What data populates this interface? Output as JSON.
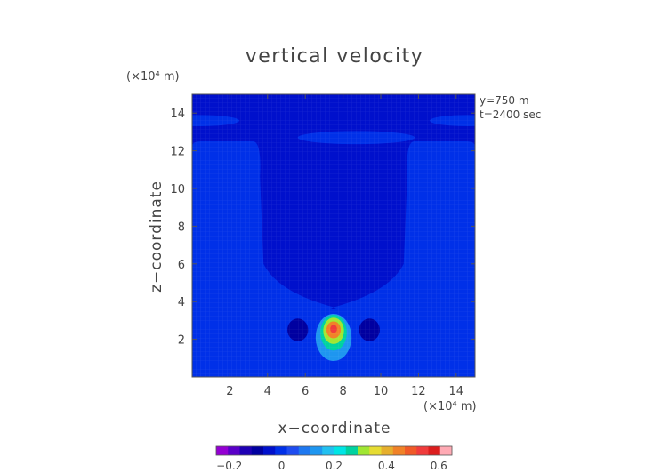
{
  "chart_data": {
    "type": "heatmap",
    "title": "vertical velocity",
    "xlabel": "x−coordinate",
    "ylabel": "z−coordinate",
    "x_unit": "(×10⁴ m)",
    "y_unit": "(×10⁴ m)",
    "annotations": [
      "y=750  m",
      "t=2400 sec"
    ],
    "xlim": [
      0,
      15
    ],
    "ylim": [
      0,
      15
    ],
    "x_ticks": [
      2,
      4,
      6,
      8,
      10,
      12,
      14
    ],
    "y_ticks": [
      2,
      4,
      6,
      8,
      10,
      12,
      14
    ],
    "x_tick_labels": [
      "2",
      "4",
      "6",
      "8",
      "10",
      "12",
      "14"
    ],
    "y_tick_labels": [
      "2",
      "4",
      "6",
      "8",
      "10",
      "12",
      "14"
    ],
    "grid": true,
    "background_value": -0.05,
    "regions": [
      {
        "shape": "updraft_column",
        "x_center": 7.5,
        "x_half_bottom": 1.6,
        "x_half_top": 1.1,
        "z_top": 3.4,
        "value": 0.0
      },
      {
        "shape": "dome",
        "x_center": 7.5,
        "x_half": 7.5,
        "z_top": 3.6,
        "value": 0.0
      },
      {
        "shape": "side_plume_left",
        "x_range": [
          0,
          3.5
        ],
        "z_range": [
          0,
          12.5
        ],
        "value": 0.0
      },
      {
        "shape": "side_plume_right",
        "x_range": [
          11.5,
          15
        ],
        "z_range": [
          0,
          12.5
        ],
        "value": 0.0
      },
      {
        "shape": "ellipse",
        "x_center": 8.7,
        "z_center": 12.7,
        "rx": 3.1,
        "rz": 0.35,
        "value": 0.0
      },
      {
        "shape": "ellipse",
        "x_center": 0.3,
        "z_center": 13.6,
        "rx": 2.2,
        "rz": 0.3,
        "value": 0.0
      },
      {
        "shape": "ellipse",
        "x_center": 14.6,
        "z_center": 13.6,
        "rx": 2.0,
        "rz": 0.3,
        "value": 0.0
      },
      {
        "shape": "ellipse",
        "x_center": 5.6,
        "z_center": 2.5,
        "rx": 0.55,
        "rz": 0.6,
        "value": -0.1
      },
      {
        "shape": "ellipse",
        "x_center": 9.4,
        "z_center": 2.5,
        "rx": 0.55,
        "rz": 0.6,
        "value": -0.1
      },
      {
        "shape": "ellipse",
        "x_center": 7.5,
        "z_center": 2.1,
        "rx": 0.95,
        "rz": 1.25,
        "value": 0.15
      },
      {
        "shape": "ellipse",
        "x_center": 7.5,
        "z_center": 2.35,
        "rx": 0.7,
        "rz": 0.95,
        "value": 0.25
      },
      {
        "shape": "ellipse",
        "x_center": 7.5,
        "z_center": 2.45,
        "rx": 0.55,
        "rz": 0.7,
        "value": 0.32
      },
      {
        "shape": "ellipse",
        "x_center": 7.5,
        "z_center": 2.5,
        "rx": 0.38,
        "rz": 0.45,
        "value": 0.45
      },
      {
        "shape": "ellipse",
        "x_center": 7.5,
        "z_center": 2.55,
        "rx": 0.18,
        "rz": 0.22,
        "value": 0.55
      }
    ],
    "colorbar": {
      "range": [
        -0.25,
        0.65
      ],
      "tick_values": [
        -0.2,
        0,
        0.2,
        0.4,
        0.6
      ],
      "tick_labels": [
        "−0.2",
        "0",
        "0.2",
        "0.4",
        "0.6"
      ],
      "colors": [
        "#9400d3",
        "#5a00c8",
        "#1e00b4",
        "#0000a0",
        "#0010cc",
        "#0030e8",
        "#1e4cf0",
        "#1e78f0",
        "#1e96f0",
        "#22c0f0",
        "#00e5e5",
        "#00d2a0",
        "#a0e632",
        "#e6dc32",
        "#e6af2d",
        "#f08228",
        "#f05a28",
        "#f03c3c",
        "#dc1e1e",
        "#ffaab4"
      ]
    }
  },
  "palette": {
    "background_blue": "#1e3cdc",
    "mid_blue": "#1e90ff",
    "dark_blue": "#0a18aa",
    "cyan": "#00d8e8",
    "yellow": "#e8e632",
    "orange": "#f08c28",
    "red": "#e63c28",
    "axis_color": "#444444"
  }
}
